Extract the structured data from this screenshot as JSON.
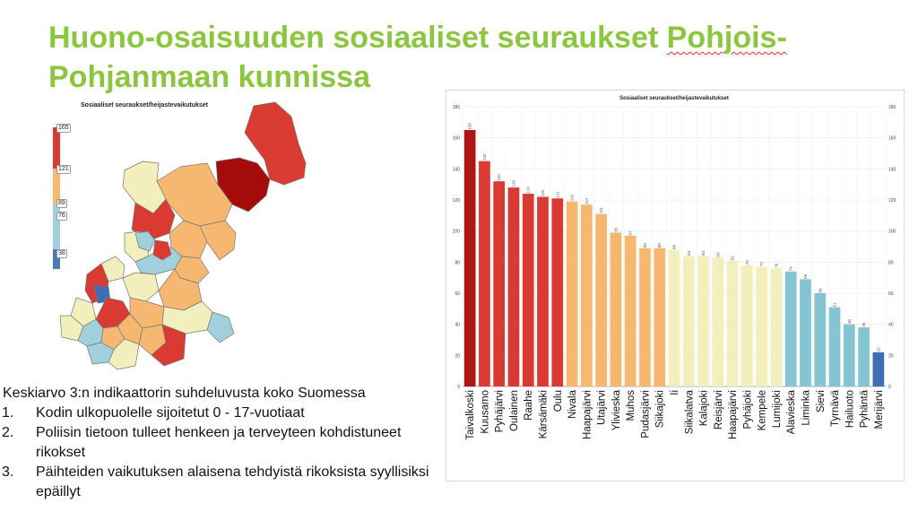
{
  "slide": {
    "title_part1": "Huono-osaisuuden sosiaaliset seuraukset ",
    "title_part2": "Pohjois-",
    "title_part3": "Pohjanmaan kunnissa"
  },
  "map": {
    "title": "Sosiaaliset seuraukset/heijastevaikutukset",
    "legend_values": [
      "165",
      "121",
      "89",
      "76",
      "38"
    ],
    "legend_colors": [
      "#d93a32",
      "#f6b870",
      "#9fd0dc",
      "#4a7ab8"
    ]
  },
  "notes": {
    "intro": "Keskiarvo 3:n indikaattorin suhdeluvusta koko Suomessa",
    "items": [
      {
        "num": "1.",
        "text": "Kodin ulkopuolelle sijoitetut 0 - 17-vuotiaat"
      },
      {
        "num": "2.",
        "text": "Poliisin tietoon tulleet henkeen ja terveyteen kohdistuneet rikokset"
      },
      {
        "num": "3.",
        "text": "Päihteiden vaikutuksen alaisena tehdyistä rikoksista syyllisiksi epäillyt"
      }
    ]
  },
  "chart_data": {
    "type": "bar",
    "title": "Sosiaaliset seuraukset/heijastevaikutukset",
    "categories": [
      "Taivalkoski",
      "Kuusamo",
      "Pyhäjärvi",
      "Oulainen",
      "Raahe",
      "Kärsämäki",
      "Oulu",
      "Nivala",
      "Haapajärvi",
      "Utajärvi",
      "Ylivieska",
      "Muhos",
      "Pudasjärvi",
      "Siikajoki",
      "Ii",
      "Siikalatva",
      "Kalajoki",
      "Reisjärvi",
      "Haapajärvi",
      "Pyhäjoki",
      "Kempele",
      "Lumijoki",
      "Alavieska",
      "Liminka",
      "Sievi",
      "Tyrnävä",
      "Hailuoto",
      "Pyhäntä",
      "Merijärvi"
    ],
    "values": [
      165,
      145,
      132,
      128,
      124,
      122,
      121,
      119,
      117,
      111,
      99,
      97,
      89,
      89,
      88,
      84,
      84,
      83,
      81,
      78,
      77,
      76,
      74,
      69,
      60,
      51,
      40,
      38,
      22
    ],
    "bar_colors": [
      "#b01515",
      "#d93a32",
      "#d93a32",
      "#d93a32",
      "#d93a32",
      "#d93a32",
      "#d93a32",
      "#f6b870",
      "#f6b870",
      "#f6b870",
      "#f6b870",
      "#f6b870",
      "#f6b870",
      "#f6b870",
      "#f2efbd",
      "#f2efbd",
      "#f2efbd",
      "#f2efbd",
      "#f2efbd",
      "#f2efbd",
      "#f2efbd",
      "#f2efbd",
      "#85c4d2",
      "#85c4d2",
      "#85c4d2",
      "#85c4d2",
      "#85c4d2",
      "#85c4d2",
      "#3e6fb0"
    ],
    "ylim": [
      0,
      180
    ],
    "yticks": [
      0,
      20,
      40,
      60,
      80,
      100,
      120,
      140,
      160,
      180
    ],
    "xlabel": "",
    "ylabel": "",
    "grid": true,
    "legend": "none"
  }
}
